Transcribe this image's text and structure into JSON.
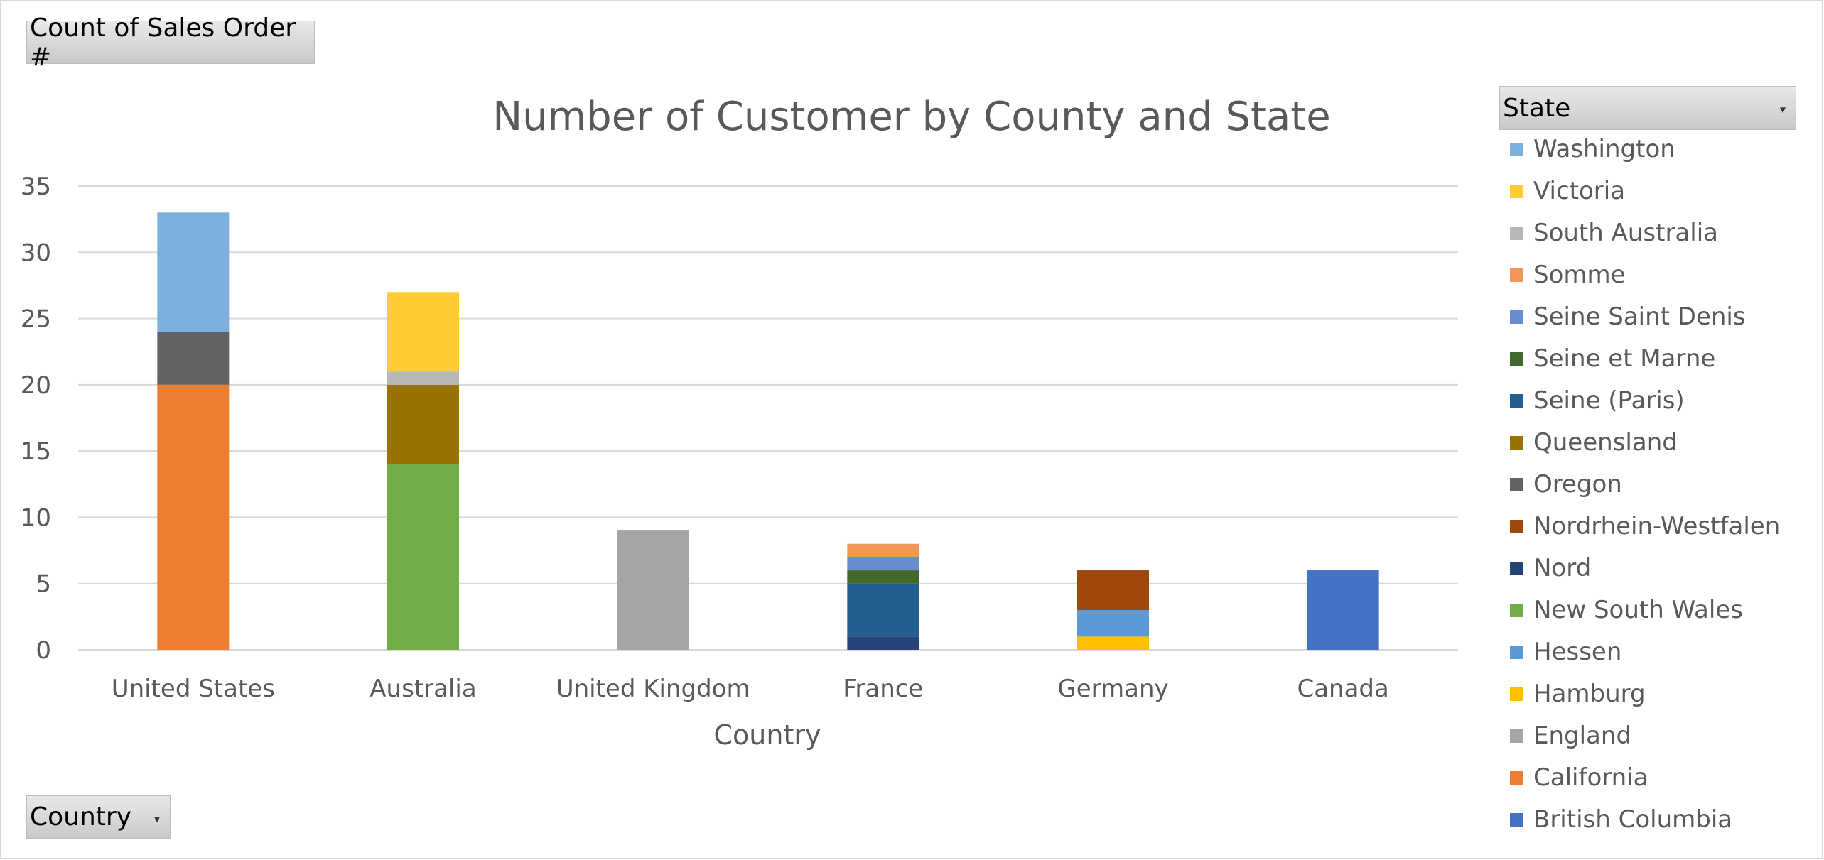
{
  "buttons": {
    "values_field": "Count of Sales Order #",
    "axis_field": "Country",
    "legend_field": "State"
  },
  "chart_data": {
    "type": "bar",
    "stacked": true,
    "title": "Number of Customer by County and State",
    "xlabel": "Country",
    "ylabel": "",
    "ylim": [
      0,
      35
    ],
    "yticks": [
      0,
      5,
      10,
      15,
      20,
      25,
      30,
      35
    ],
    "grid": true,
    "legend_position": "right",
    "categories": [
      "United States",
      "Australia",
      "United Kingdom",
      "France",
      "Germany",
      "Canada"
    ],
    "series": [
      {
        "name": "British Columbia",
        "color": "#4472c4",
        "values": [
          0,
          0,
          0,
          0,
          0,
          6
        ]
      },
      {
        "name": "California",
        "color": "#ed7d31",
        "values": [
          20,
          0,
          0,
          0,
          0,
          0
        ]
      },
      {
        "name": "England",
        "color": "#a5a5a5",
        "values": [
          0,
          0,
          9,
          0,
          0,
          0
        ]
      },
      {
        "name": "Hamburg",
        "color": "#ffc000",
        "values": [
          0,
          0,
          0,
          0,
          1,
          0
        ]
      },
      {
        "name": "Hessen",
        "color": "#5b9bd5",
        "values": [
          0,
          0,
          0,
          0,
          2,
          0
        ]
      },
      {
        "name": "New South Wales",
        "color": "#70ad47",
        "values": [
          0,
          14,
          0,
          0,
          0,
          0
        ]
      },
      {
        "name": "Nord",
        "color": "#264478",
        "values": [
          0,
          0,
          0,
          1,
          0,
          0
        ]
      },
      {
        "name": "Nordrhein-Westfalen",
        "color": "#9e480e",
        "values": [
          0,
          0,
          0,
          0,
          3,
          0
        ]
      },
      {
        "name": "Oregon",
        "color": "#636363",
        "values": [
          4,
          0,
          0,
          0,
          0,
          0
        ]
      },
      {
        "name": "Queensland",
        "color": "#997300",
        "values": [
          0,
          6,
          0,
          0,
          0,
          0
        ]
      },
      {
        "name": "Seine (Paris)",
        "color": "#255e91",
        "values": [
          0,
          0,
          0,
          4,
          0,
          0
        ]
      },
      {
        "name": "Seine et Marne",
        "color": "#43682b",
        "values": [
          0,
          0,
          0,
          1,
          0,
          0
        ]
      },
      {
        "name": "Seine Saint Denis",
        "color": "#698ed0",
        "values": [
          0,
          0,
          0,
          1,
          0,
          0
        ]
      },
      {
        "name": "Somme",
        "color": "#f1975a",
        "values": [
          0,
          0,
          0,
          1,
          0,
          0
        ]
      },
      {
        "name": "South Australia",
        "color": "#b7b7b7",
        "values": [
          0,
          1,
          0,
          0,
          0,
          0
        ]
      },
      {
        "name": "Victoria",
        "color": "#ffcd33",
        "values": [
          0,
          6,
          0,
          0,
          0,
          0
        ]
      },
      {
        "name": "Washington",
        "color": "#7cafdd",
        "values": [
          9,
          0,
          0,
          0,
          0,
          0
        ]
      }
    ]
  }
}
